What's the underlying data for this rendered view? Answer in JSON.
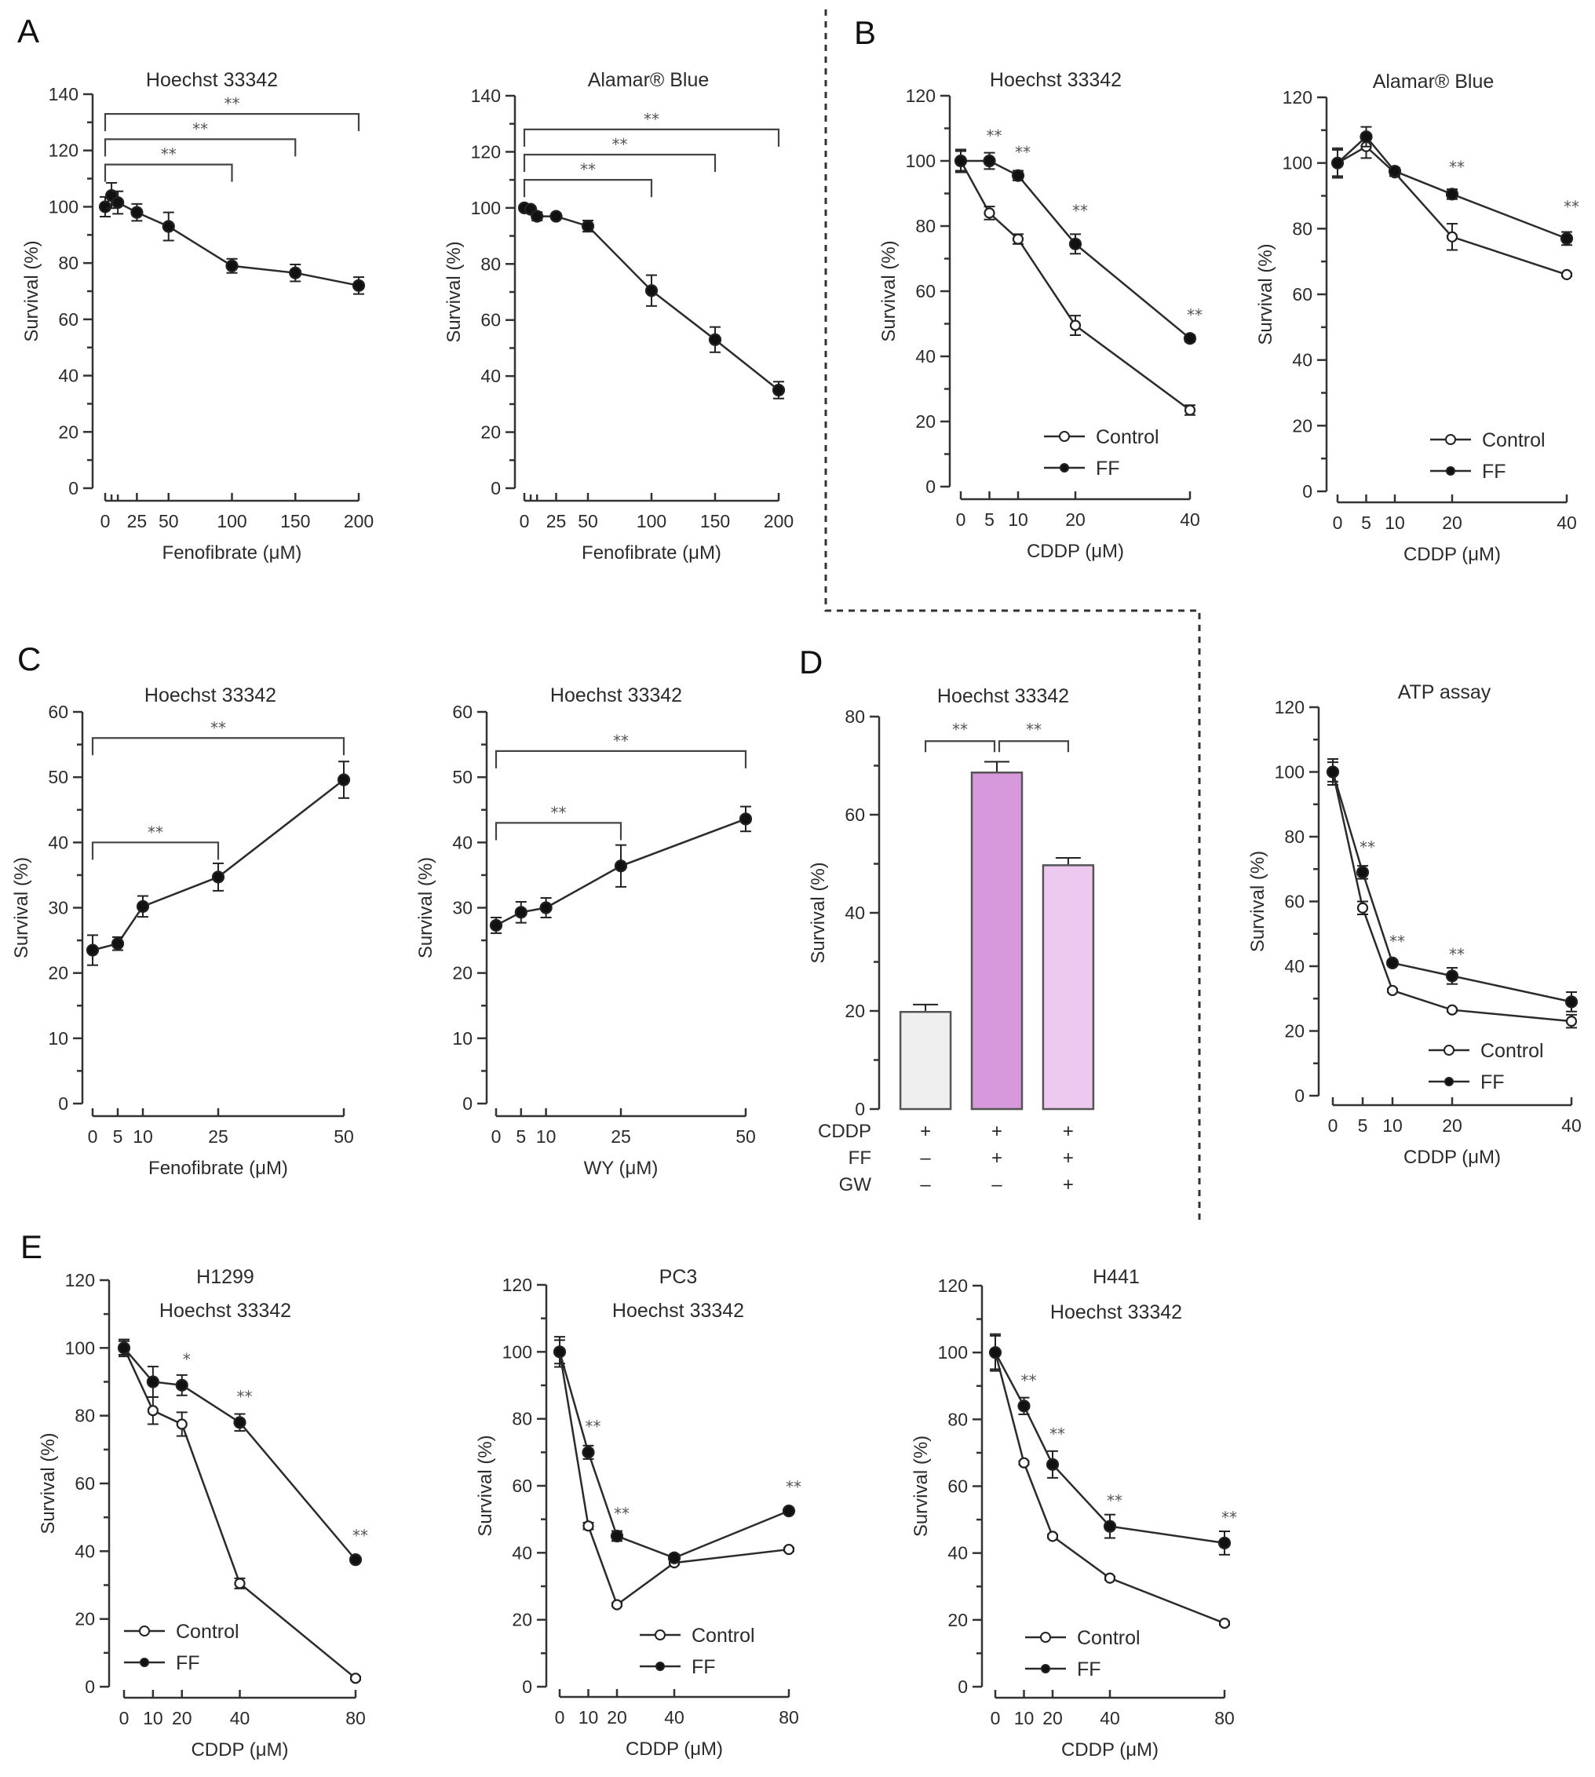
{
  "figure": {
    "panel_letters": [
      "A",
      "B",
      "C",
      "D",
      "E"
    ],
    "legend": {
      "control": "Control",
      "ff": "FF"
    },
    "colors": {
      "line": "#2b2b2b",
      "bar_cddp": "#efefef",
      "bar_cddp_ff": "#d898dc",
      "bar_cddp_ff_gw": "#edc9ef",
      "bar_edge": "#555555"
    }
  },
  "chart_data": [
    {
      "id": "A1",
      "panel": "A",
      "type": "line",
      "title": "Hoechst 33342",
      "xlabel": "Fenofibrate (μM)",
      "ylabel": "Survival (%)",
      "ylim": [
        0,
        140
      ],
      "yticks": [
        0,
        20,
        40,
        60,
        80,
        100,
        120,
        140
      ],
      "xlim": [
        0,
        200
      ],
      "xticks": [
        0,
        25,
        50,
        100,
        150,
        200
      ],
      "xticks_minor": [
        5,
        10
      ],
      "series": [
        {
          "name": "Fenofibrate",
          "marker": "filled",
          "x": [
            0,
            5,
            10,
            25,
            50,
            100,
            150,
            200
          ],
          "y": [
            100,
            104,
            101.5,
            98,
            93,
            79,
            76.5,
            72
          ],
          "err": [
            3.5,
            4.5,
            4,
            3,
            5,
            2.5,
            3,
            3
          ]
        }
      ],
      "brackets": [
        {
          "from": 0,
          "to": 100,
          "level": 115,
          "label": "**"
        },
        {
          "from": 0,
          "to": 150,
          "level": 124,
          "label": "**"
        },
        {
          "from": 0,
          "to": 200,
          "level": 133,
          "label": "**"
        }
      ]
    },
    {
      "id": "A2",
      "panel": "A",
      "type": "line",
      "title": "Alamar® Blue",
      "xlabel": "Fenofibrate (μM)",
      "ylabel": "Survival (%)",
      "ylim": [
        0,
        140
      ],
      "yticks": [
        0,
        20,
        40,
        60,
        80,
        100,
        120,
        140
      ],
      "xlim": [
        0,
        200
      ],
      "xticks": [
        0,
        25,
        50,
        100,
        150,
        200
      ],
      "xticks_minor": [
        5,
        10
      ],
      "series": [
        {
          "name": "Fenofibrate",
          "marker": "filled",
          "x": [
            0,
            5,
            10,
            25,
            50,
            100,
            150,
            200
          ],
          "y": [
            100,
            99.5,
            97,
            97,
            93.5,
            70.5,
            53,
            35
          ],
          "err": [
            0.5,
            0.5,
            1.5,
            0.5,
            2,
            5.5,
            4.5,
            3
          ]
        }
      ],
      "brackets": [
        {
          "from": 0,
          "to": 100,
          "level": 110,
          "label": "**"
        },
        {
          "from": 0,
          "to": 150,
          "level": 119,
          "label": "**"
        },
        {
          "from": 0,
          "to": 200,
          "level": 128,
          "label": "**"
        }
      ]
    },
    {
      "id": "B1",
      "panel": "B",
      "type": "line",
      "title": "Hoechst 33342",
      "xlabel": "CDDP (μM)",
      "ylabel": "Survival (%)",
      "ylim": [
        0,
        120
      ],
      "yticks": [
        0,
        20,
        40,
        60,
        80,
        100,
        120
      ],
      "xlim": [
        0,
        40
      ],
      "xticks": [
        0,
        5,
        10,
        20,
        40
      ],
      "legend_position": "bottom-right",
      "series": [
        {
          "name": "Control",
          "marker": "open",
          "x": [
            0,
            5,
            10,
            20,
            40
          ],
          "y": [
            100,
            84,
            76,
            49.5,
            23.5
          ],
          "err": [
            3,
            2,
            1.5,
            3,
            1.5
          ]
        },
        {
          "name": "FF",
          "marker": "filled",
          "x": [
            0,
            5,
            10,
            20,
            40
          ],
          "y": [
            100,
            100,
            95.5,
            74.5,
            45.5
          ],
          "err": [
            3.5,
            2.5,
            1.5,
            3,
            1
          ]
        }
      ],
      "significance": [
        {
          "x": 5,
          "y": 106,
          "label": "**"
        },
        {
          "x": 10,
          "y": 101,
          "label": "**"
        },
        {
          "x": 20,
          "y": 83,
          "label": "**"
        },
        {
          "x": 40,
          "y": 51,
          "label": "**"
        }
      ]
    },
    {
      "id": "B2",
      "panel": "B",
      "type": "line",
      "title": "Alamar® Blue",
      "xlabel": "CDDP (μM)",
      "ylabel": "Survival (%)",
      "ylim": [
        0,
        120
      ],
      "yticks": [
        0,
        20,
        40,
        60,
        80,
        100,
        120
      ],
      "xlim": [
        0,
        40
      ],
      "xticks": [
        0,
        5,
        10,
        20,
        40
      ],
      "legend_position": "bottom-right",
      "series": [
        {
          "name": "Control",
          "marker": "open",
          "x": [
            0,
            5,
            10,
            20,
            40
          ],
          "y": [
            100,
            105,
            97,
            77.5,
            66
          ],
          "err": [
            4,
            3.5,
            1,
            4,
            0.5
          ]
        },
        {
          "name": "FF",
          "marker": "filled",
          "x": [
            0,
            5,
            10,
            20,
            40
          ],
          "y": [
            100,
            108,
            97.5,
            90.5,
            77
          ],
          "err": [
            4.5,
            3,
            1,
            1.5,
            2
          ]
        }
      ],
      "significance": [
        {
          "x": 20,
          "y": 97,
          "label": "**"
        },
        {
          "x": 40,
          "y": 85,
          "label": "**"
        }
      ]
    },
    {
      "id": "C1",
      "panel": "C",
      "type": "line",
      "title": "Hoechst 33342",
      "xlabel": "Fenofibrate (μM)",
      "ylabel": "Survival (%)",
      "ylim": [
        0,
        60
      ],
      "yticks": [
        0,
        10,
        20,
        30,
        40,
        50,
        60
      ],
      "xlim": [
        0,
        50
      ],
      "xticks": [
        0,
        5,
        10,
        25,
        50
      ],
      "series": [
        {
          "name": "Fenofibrate",
          "marker": "filled",
          "x": [
            0,
            5,
            10,
            25,
            50
          ],
          "y": [
            23.5,
            24.5,
            30.2,
            34.7,
            49.6
          ],
          "err": [
            2.3,
            1,
            1.6,
            2.1,
            2.8
          ]
        }
      ],
      "brackets": [
        {
          "from": 0,
          "to": 25,
          "level": 40,
          "label": "**"
        },
        {
          "from": 0,
          "to": 50,
          "level": 56,
          "label": "**"
        }
      ]
    },
    {
      "id": "C2",
      "panel": "C",
      "type": "line",
      "title": "Hoechst 33342",
      "xlabel": "WY (μM)",
      "ylabel": "Survival (%)",
      "ylim": [
        0,
        60
      ],
      "yticks": [
        0,
        10,
        20,
        30,
        40,
        50,
        60
      ],
      "xlim": [
        0,
        50
      ],
      "xticks": [
        0,
        5,
        10,
        25,
        50
      ],
      "series": [
        {
          "name": "WY",
          "marker": "filled",
          "x": [
            0,
            5,
            10,
            25,
            50
          ],
          "y": [
            27.3,
            29.3,
            30,
            36.4,
            43.6
          ],
          "err": [
            1.2,
            1.6,
            1.5,
            3.2,
            1.9
          ]
        }
      ],
      "brackets": [
        {
          "from": 0,
          "to": 25,
          "level": 43,
          "label": "**"
        },
        {
          "from": 0,
          "to": 50,
          "level": 54,
          "label": "**"
        }
      ]
    },
    {
      "id": "D1",
      "panel": "D",
      "type": "bar",
      "title": "Hoechst 33342",
      "xlabel": "",
      "ylabel": "Survival (%)",
      "ylim": [
        0,
        80
      ],
      "yticks": [
        0,
        20,
        40,
        60,
        80
      ],
      "categories": [
        "CDDP",
        "CDDP+FF",
        "CDDP+FF+GW"
      ],
      "values": [
        19.8,
        68.6,
        49.7
      ],
      "err": [
        1.5,
        2.2,
        1.5
      ],
      "treatment_table": {
        "rows": [
          {
            "label": "CDDP",
            "values": [
              "+",
              "+",
              "+"
            ]
          },
          {
            "label": "FF",
            "values": [
              "–",
              "+",
              "+"
            ]
          },
          {
            "label": "GW",
            "values": [
              "–",
              "–",
              "+"
            ]
          }
        ]
      },
      "brackets": [
        {
          "from": 0,
          "to": 1,
          "level": 75,
          "label": "**"
        },
        {
          "from": 1,
          "to": 2,
          "level": 75,
          "label": "**"
        }
      ]
    },
    {
      "id": "D2",
      "panel": "D",
      "type": "line",
      "title": "ATP assay",
      "xlabel": "CDDP (μM)",
      "ylabel": "Survival (%)",
      "ylim": [
        0,
        120
      ],
      "yticks": [
        0,
        20,
        40,
        60,
        80,
        100,
        120
      ],
      "xlim": [
        0,
        40
      ],
      "xticks": [
        0,
        5,
        10,
        20,
        40
      ],
      "legend_position": "bottom-right",
      "series": [
        {
          "name": "Control",
          "marker": "open",
          "x": [
            0,
            5,
            10,
            20,
            40
          ],
          "y": [
            100,
            58,
            32.5,
            26.5,
            23
          ],
          "err": [
            3,
            2,
            0.5,
            0.5,
            2
          ]
        },
        {
          "name": "FF",
          "marker": "filled",
          "x": [
            0,
            5,
            10,
            20,
            40
          ],
          "y": [
            100,
            69,
            41,
            37,
            29
          ],
          "err": [
            4,
            2,
            0.5,
            2.5,
            3
          ]
        }
      ],
      "significance": [
        {
          "x": 5,
          "y": 75,
          "label": "**"
        },
        {
          "x": 10,
          "y": 46,
          "label": "**"
        },
        {
          "x": 20,
          "y": 42,
          "label": "**"
        }
      ]
    },
    {
      "id": "E1",
      "panel": "E",
      "type": "line",
      "title": "H1299",
      "subtitle": "Hoechst 33342",
      "xlabel": "CDDP (μM)",
      "ylabel": "Survival (%)",
      "ylim": [
        0,
        120
      ],
      "yticks": [
        0,
        20,
        40,
        60,
        80,
        100,
        120
      ],
      "xlim": [
        0,
        80
      ],
      "xticks": [
        0,
        10,
        20,
        40,
        80
      ],
      "legend_position": "bottom-left",
      "series": [
        {
          "name": "Control",
          "marker": "open",
          "x": [
            0,
            10,
            20,
            40,
            80
          ],
          "y": [
            100,
            81.5,
            77.5,
            30.5,
            2.5
          ],
          "err": [
            2,
            4,
            3.5,
            1.5,
            0.5
          ]
        },
        {
          "name": "FF",
          "marker": "filled",
          "x": [
            0,
            10,
            20,
            40,
            80
          ],
          "y": [
            100,
            90,
            89,
            78,
            37.5
          ],
          "err": [
            2.5,
            4.5,
            3,
            2.5,
            0.5
          ]
        }
      ],
      "significance": [
        {
          "x": 20,
          "y": 95,
          "label": "*"
        },
        {
          "x": 40,
          "y": 84,
          "label": "**"
        },
        {
          "x": 80,
          "y": 43,
          "label": "**"
        }
      ]
    },
    {
      "id": "E2",
      "panel": "E",
      "type": "line",
      "title": "PC3",
      "subtitle": "Hoechst 33342",
      "xlabel": "CDDP (μM)",
      "ylabel": "Survival (%)",
      "ylim": [
        0,
        120
      ],
      "yticks": [
        0,
        20,
        40,
        60,
        80,
        100,
        120
      ],
      "xlim": [
        0,
        80
      ],
      "xticks": [
        0,
        10,
        20,
        40,
        80
      ],
      "legend_position": "bottom-center",
      "series": [
        {
          "name": "Control",
          "marker": "open",
          "x": [
            0,
            10,
            20,
            40,
            80
          ],
          "y": [
            100,
            48,
            24.5,
            37,
            41
          ],
          "err": [
            3.5,
            1,
            0.5,
            0.5,
            0.5
          ]
        },
        {
          "name": "FF",
          "marker": "filled",
          "x": [
            0,
            10,
            20,
            40,
            80
          ],
          "y": [
            100,
            70,
            45,
            38.5,
            52.5
          ],
          "err": [
            4.5,
            2,
            1.5,
            1,
            0.5
          ]
        }
      ],
      "significance": [
        {
          "x": 10,
          "y": 76,
          "label": "**"
        },
        {
          "x": 20,
          "y": 50,
          "label": "**"
        },
        {
          "x": 80,
          "y": 58,
          "label": "**"
        }
      ]
    },
    {
      "id": "E3",
      "panel": "E",
      "type": "line",
      "title": "H441",
      "subtitle": "Hoechst 33342",
      "xlabel": "CDDP (μM)",
      "ylabel": "Survival (%)",
      "ylim": [
        0,
        120
      ],
      "yticks": [
        0,
        20,
        40,
        60,
        80,
        100,
        120
      ],
      "xlim": [
        0,
        80
      ],
      "xticks": [
        0,
        10,
        20,
        40,
        80
      ],
      "legend_position": "bottom-center",
      "series": [
        {
          "name": "Control",
          "marker": "open",
          "x": [
            0,
            10,
            20,
            40,
            80
          ],
          "y": [
            100,
            67,
            45,
            32.5,
            19
          ],
          "err": [
            5,
            0.5,
            0.5,
            0.5,
            0.5
          ]
        },
        {
          "name": "FF",
          "marker": "filled",
          "x": [
            0,
            10,
            20,
            40,
            80
          ],
          "y": [
            100,
            84,
            66.5,
            48,
            43
          ],
          "err": [
            5.5,
            2.5,
            4,
            3.5,
            3.5
          ]
        }
      ],
      "significance": [
        {
          "x": 10,
          "y": 90,
          "label": "**"
        },
        {
          "x": 20,
          "y": 74,
          "label": "**"
        },
        {
          "x": 40,
          "y": 54,
          "label": "**"
        },
        {
          "x": 80,
          "y": 49,
          "label": "**"
        }
      ]
    }
  ]
}
